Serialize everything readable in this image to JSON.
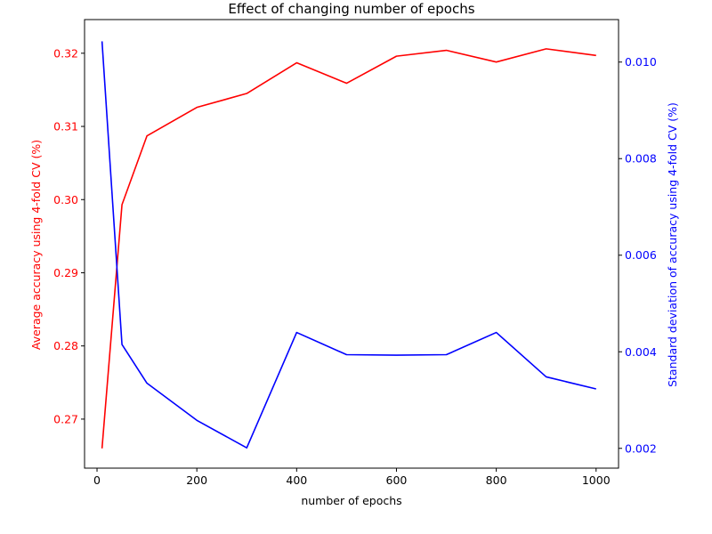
{
  "chart_data": {
    "type": "line",
    "title": "Effect of changing number of epochs",
    "xlabel": "number of epochs",
    "ylabel_left": "Average accuracy using 4-fold CV (%)",
    "ylabel_right": "Standard deviation of accuracy using 4-fold CV (%)",
    "x": [
      10,
      50,
      100,
      200,
      300,
      400,
      500,
      600,
      700,
      800,
      900,
      1000
    ],
    "xlim": [
      -25,
      1045
    ],
    "xticks": [
      0,
      200,
      400,
      600,
      800,
      1000
    ],
    "xtick_labels": [
      "0",
      "200",
      "400",
      "600",
      "800",
      "1000"
    ],
    "ylim_left": [
      0.2633,
      0.3246
    ],
    "yticks_left": [
      0.27,
      0.28,
      0.29,
      0.3,
      0.31,
      0.32
    ],
    "ytick_labels_left": [
      "0.27",
      "0.28",
      "0.29",
      "0.30",
      "0.31",
      "0.32"
    ],
    "ylim_right": [
      0.00159,
      0.01088
    ],
    "yticks_right": [
      0.002,
      0.004,
      0.006,
      0.008,
      0.01
    ],
    "ytick_labels_right": [
      "0.002",
      "0.004",
      "0.006",
      "0.008",
      "0.010"
    ],
    "grid": false,
    "series": [
      {
        "axis": "left",
        "color": "#ff0000",
        "values": [
          0.266,
          0.2993,
          0.3087,
          0.3126,
          0.3145,
          0.3187,
          0.3159,
          0.3196,
          0.3204,
          0.3188,
          0.3206,
          0.3197
        ]
      },
      {
        "axis": "right",
        "color": "#0000ff",
        "values": [
          0.01043,
          0.00415,
          0.00335,
          0.00258,
          0.00201,
          0.0044,
          0.00394,
          0.00393,
          0.00394,
          0.0044,
          0.00348,
          0.00323
        ]
      }
    ],
    "left_axis_color": "#ff0000",
    "right_axis_color": "#0000ff"
  }
}
